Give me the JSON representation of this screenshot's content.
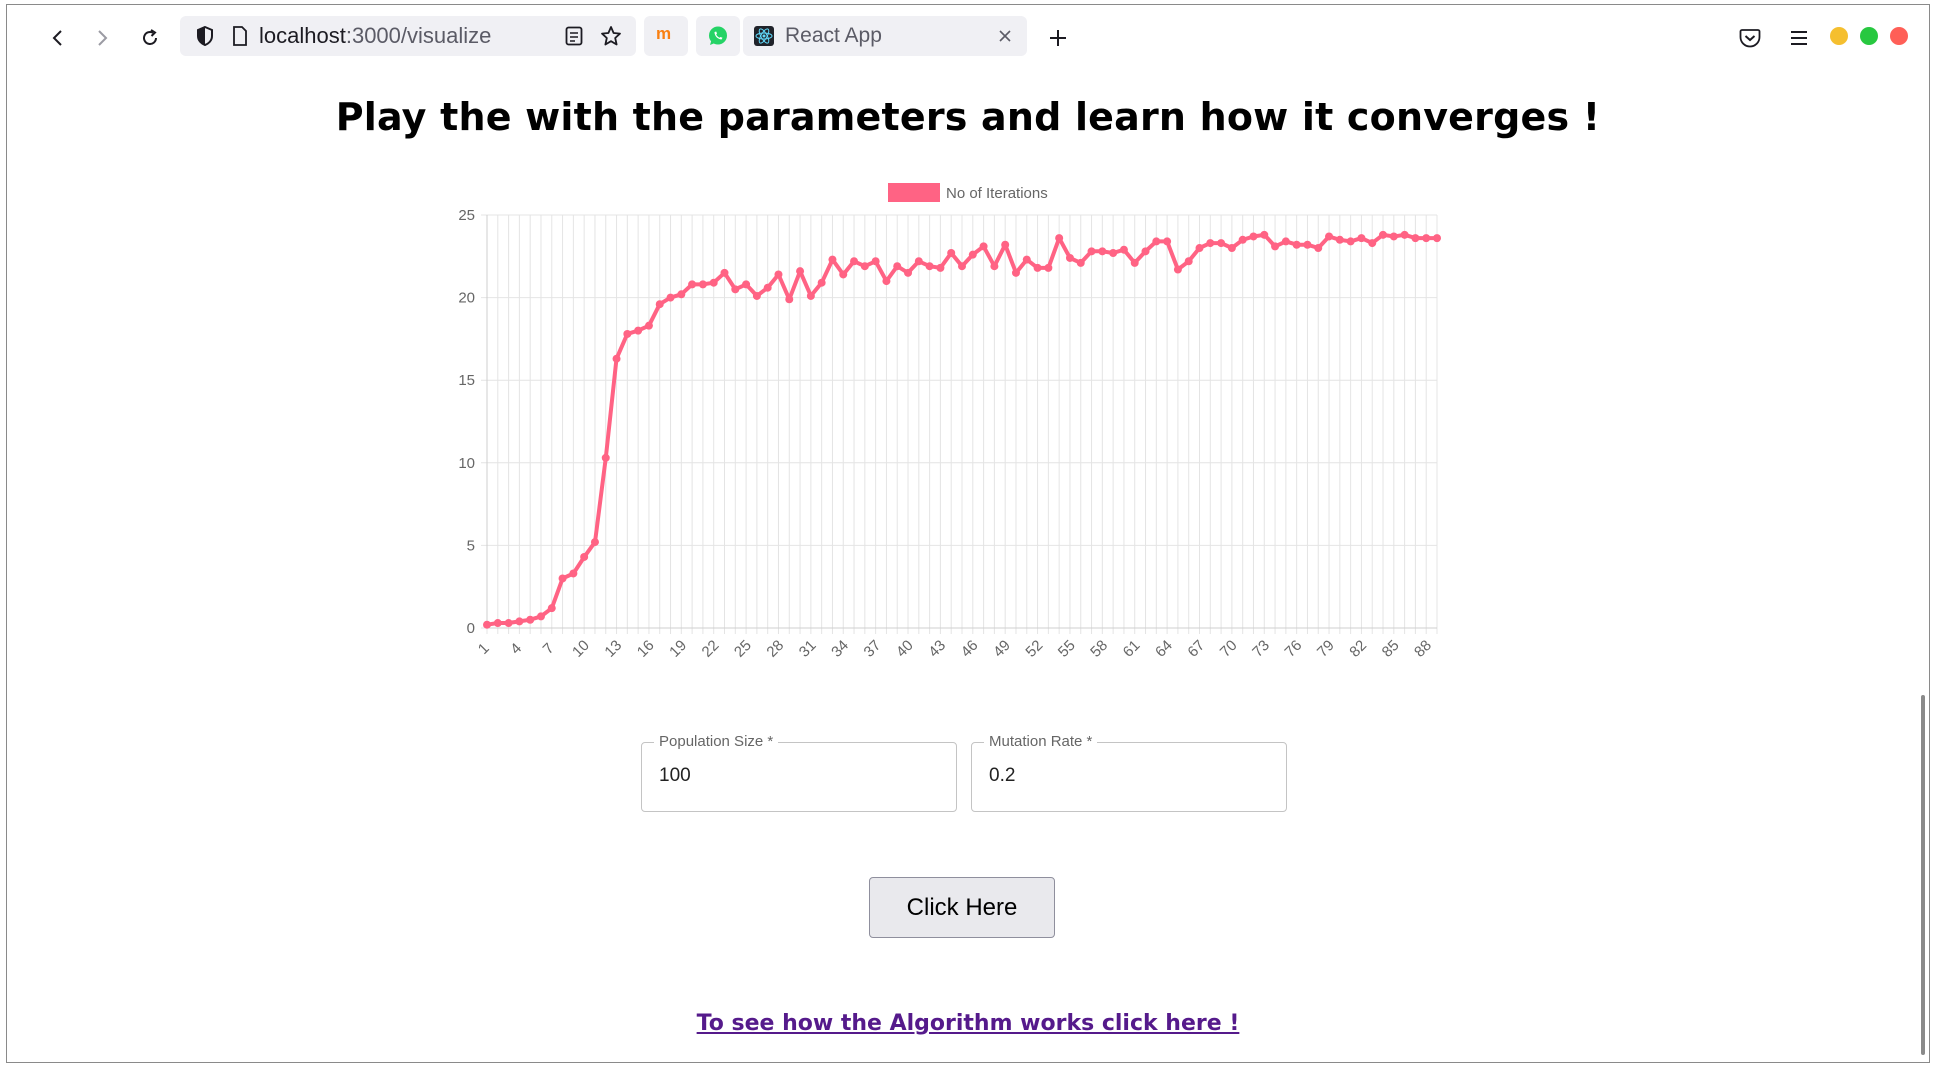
{
  "browser": {
    "url_host": "localhost",
    "url_path": ":3000/visualize",
    "tab_title": "React App",
    "accent_colors": {
      "minimize": "#f5bf2f",
      "maximize": "#28c840",
      "close": "#ff5f57"
    }
  },
  "page": {
    "heading": "Play the with the parameters and learn how it converges !",
    "population_label": "Population Size *",
    "population_value": "100",
    "mutation_label": "Mutation Rate *",
    "mutation_value": "0.2",
    "button_label": "Click Here",
    "link_text": "To see how the Algorithm works click here !"
  },
  "chart_data": {
    "type": "line",
    "legend": "No of Iterations",
    "legend_position": "top",
    "color": "#ff6384",
    "grid": true,
    "ylim": [
      0,
      25
    ],
    "yticks": [
      0,
      5,
      10,
      15,
      20,
      25
    ],
    "xtick_labels": [
      "1",
      "4",
      "7",
      "10",
      "13",
      "16",
      "19",
      "22",
      "25",
      "28",
      "31",
      "34",
      "37",
      "40",
      "43",
      "46",
      "49",
      "52",
      "55",
      "58",
      "61",
      "64",
      "67",
      "70",
      "73",
      "76",
      "79",
      "82",
      "85",
      "88"
    ],
    "x": [
      1,
      2,
      3,
      4,
      5,
      6,
      7,
      8,
      9,
      10,
      11,
      12,
      13,
      14,
      15,
      16,
      17,
      18,
      19,
      20,
      21,
      22,
      23,
      24,
      25,
      26,
      27,
      28,
      29,
      30,
      31,
      32,
      33,
      34,
      35,
      36,
      37,
      38,
      39,
      40,
      41,
      42,
      43,
      44,
      45,
      46,
      47,
      48,
      49,
      50,
      51,
      52,
      53,
      54,
      55,
      56,
      57,
      58,
      59,
      60,
      61,
      62,
      63,
      64,
      65,
      66,
      67,
      68,
      69,
      70,
      71,
      72,
      73,
      74,
      75,
      76,
      77,
      78,
      79,
      80,
      81,
      82,
      83,
      84,
      85,
      86,
      87,
      88,
      89
    ],
    "values": [
      0.2,
      0.3,
      0.3,
      0.4,
      0.5,
      0.7,
      1.2,
      3.0,
      3.3,
      4.3,
      5.2,
      10.3,
      16.3,
      17.8,
      18.0,
      18.3,
      19.6,
      20.0,
      20.2,
      20.8,
      20.8,
      20.9,
      21.5,
      20.5,
      20.8,
      20.1,
      20.6,
      21.4,
      19.9,
      21.6,
      20.1,
      20.9,
      22.3,
      21.4,
      22.2,
      21.9,
      22.2,
      21.0,
      21.9,
      21.5,
      22.2,
      21.9,
      21.8,
      22.7,
      21.9,
      22.6,
      23.1,
      21.9,
      23.2,
      21.5,
      22.3,
      21.8,
      21.8,
      23.6,
      22.4,
      22.1,
      22.8,
      22.8,
      22.7,
      22.9,
      22.1,
      22.8,
      23.4,
      23.4,
      21.7,
      22.2,
      23.0,
      23.3,
      23.3,
      23.0,
      23.5,
      23.7,
      23.8,
      23.1,
      23.4,
      23.2,
      23.2,
      23.0,
      23.7,
      23.5,
      23.4,
      23.6,
      23.3,
      23.8,
      23.7,
      23.8,
      23.6,
      23.6,
      23.6
    ]
  }
}
